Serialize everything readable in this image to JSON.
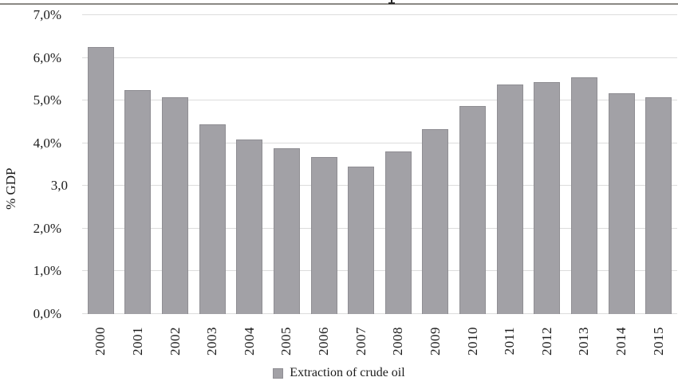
{
  "chart_data": {
    "type": "bar",
    "categories": [
      "2000",
      "2001",
      "2002",
      "2003",
      "2004",
      "2005",
      "2006",
      "2007",
      "2008",
      "2009",
      "2010",
      "2011",
      "2012",
      "2013",
      "2014",
      "2015"
    ],
    "values": [
      6.26,
      5.24,
      5.08,
      4.44,
      4.09,
      3.88,
      3.67,
      3.46,
      3.8,
      4.33,
      4.88,
      5.37,
      5.43,
      5.55,
      5.18,
      5.08
    ],
    "series_name": "Extraction of crude oil",
    "xlabel": "",
    "ylabel": "% GDP",
    "ylim": [
      0,
      7
    ],
    "grid": true,
    "yticks": [
      {
        "label": "7,0%",
        "value": 7.0
      },
      {
        "label": "6,0%",
        "value": 6.0
      },
      {
        "label": "5,0%",
        "value": 5.0
      },
      {
        "label": "4,0%",
        "value": 4.0
      },
      {
        "label": "3,0",
        "value": 3.0
      },
      {
        "label": "2,0%",
        "value": 2.0
      },
      {
        "label": "1,0%",
        "value": 1.0
      },
      {
        "label": "0,0%",
        "value": 0.0
      }
    ],
    "legend": {
      "position": "bottom",
      "label": "Extraction of crude oil"
    },
    "colors": {
      "bar_fill": "#a2a1a6",
      "bar_border": "#8f8e93",
      "gridline": "#dcdcdc",
      "top_rule": "#8b8984",
      "text": "#1c1c1c"
    }
  }
}
